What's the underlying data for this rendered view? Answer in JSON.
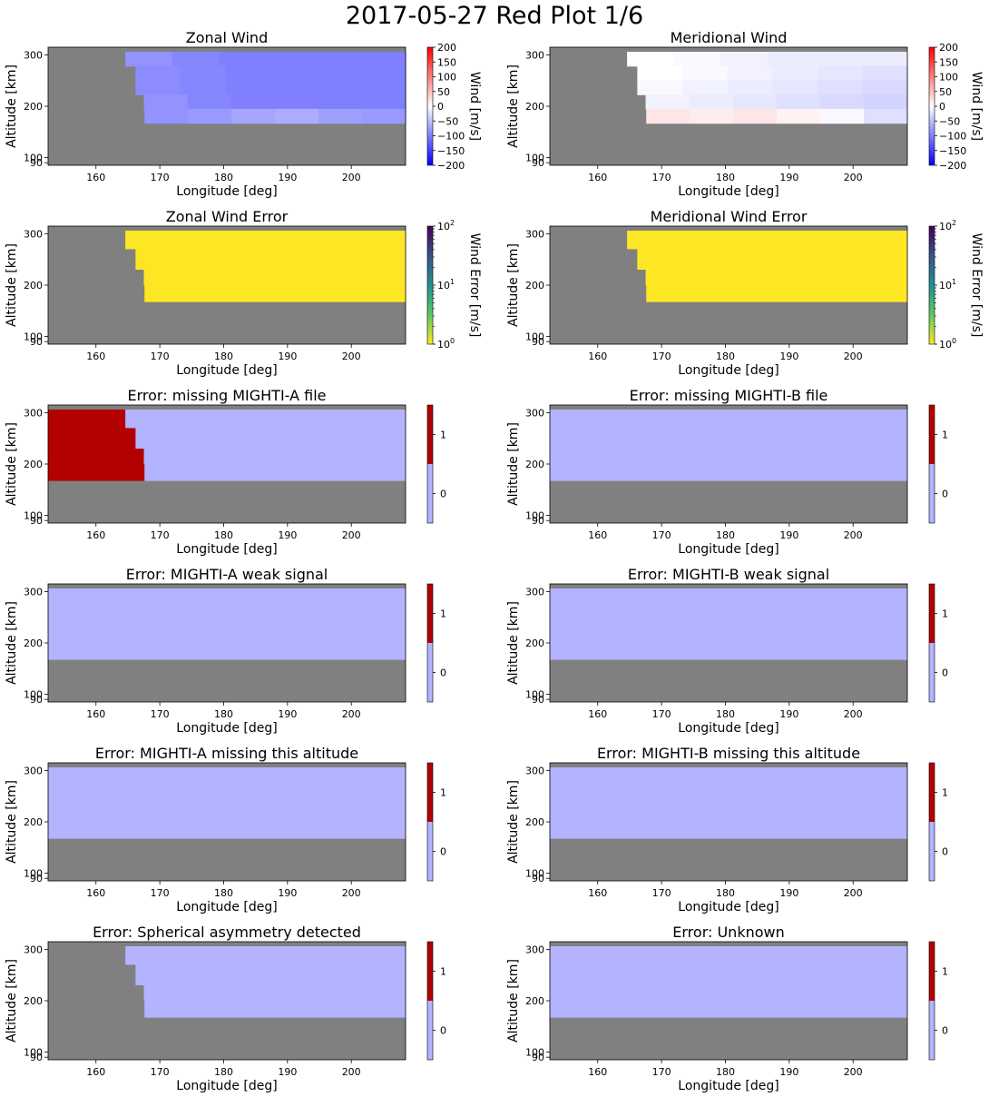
{
  "suptitle": "2017-05-27 Red Plot 1/6",
  "colors": {
    "nodata": "#808080",
    "flag_low": "#b3b3ff",
    "flag_high": "#b30000",
    "error_fill": "#fde725"
  },
  "chart_data": [
    {
      "type": "heatmap",
      "title": "Zonal Wind",
      "xlabel": "Longitude [deg]",
      "ylabel": "Altitude [km]",
      "xlim": [
        152.5,
        208.5
      ],
      "ylim": [
        85,
        315
      ],
      "xticks": [
        160,
        170,
        180,
        190,
        200
      ],
      "yticks": [
        90,
        100,
        200,
        300
      ],
      "colorbar": {
        "label": "Wind [m/s]",
        "scale": "diverging",
        "range": [
          -200,
          200
        ],
        "ticks": [
          200,
          150,
          100,
          50,
          0,
          -50,
          -100,
          -150,
          -200
        ]
      },
      "data_region": {
        "top_row_km": 300,
        "bottom_km": 167,
        "edge": [
          {
            "alt": 300,
            "lon": 164.6
          },
          {
            "alt": 270,
            "lon": 166.2
          },
          {
            "alt": 230,
            "lon": 167.5
          },
          {
            "alt": 200,
            "lon": 167.6
          }
        ]
      },
      "rows": [
        {
          "alt": 300,
          "values": [
            -85,
            -95,
            -100,
            -100,
            -100,
            -100
          ]
        },
        {
          "alt": 270,
          "values": [
            -90,
            -95,
            -100,
            -100,
            -100,
            -100
          ]
        },
        {
          "alt": 240,
          "values": [
            -90,
            -95,
            -100,
            -100,
            -100,
            -100
          ]
        },
        {
          "alt": 210,
          "values": [
            -85,
            -95,
            -100,
            -100,
            -100,
            -100
          ]
        },
        {
          "alt": 180,
          "values": [
            -85,
            -80,
            -70,
            -65,
            -75,
            -80
          ]
        }
      ]
    },
    {
      "type": "heatmap",
      "title": "Meridional Wind",
      "xlabel": "Longitude [deg]",
      "ylabel": "Altitude [km]",
      "xlim": [
        152.5,
        208.5
      ],
      "ylim": [
        85,
        315
      ],
      "xticks": [
        160,
        170,
        180,
        190,
        200
      ],
      "yticks": [
        90,
        100,
        200,
        300
      ],
      "colorbar": {
        "label": "Wind [m/s]",
        "scale": "diverging",
        "range": [
          -200,
          200
        ],
        "ticks": [
          200,
          150,
          100,
          50,
          0,
          -50,
          -100,
          -150,
          -200
        ]
      },
      "data_region": {
        "top_row_km": 300,
        "bottom_km": 167,
        "edge": [
          {
            "alt": 300,
            "lon": 164.6
          },
          {
            "alt": 270,
            "lon": 166.2
          },
          {
            "alt": 230,
            "lon": 167.5
          },
          {
            "alt": 200,
            "lon": 167.6
          }
        ]
      },
      "rows": [
        {
          "alt": 300,
          "values": [
            0,
            -5,
            -10,
            -15,
            -15,
            -15
          ]
        },
        {
          "alt": 270,
          "values": [
            0,
            -5,
            -10,
            -15,
            -20,
            -25
          ]
        },
        {
          "alt": 240,
          "values": [
            -5,
            -10,
            -15,
            -20,
            -25,
            -30
          ]
        },
        {
          "alt": 210,
          "values": [
            -10,
            -15,
            -20,
            -25,
            -30,
            -35
          ]
        },
        {
          "alt": 180,
          "values": [
            20,
            15,
            20,
            10,
            -5,
            -25
          ]
        }
      ]
    },
    {
      "type": "heatmap",
      "title": "Zonal Wind Error",
      "xlabel": "Longitude [deg]",
      "ylabel": "Altitude [km]",
      "xlim": [
        152.5,
        208.5
      ],
      "ylim": [
        85,
        315
      ],
      "xticks": [
        160,
        170,
        180,
        190,
        200
      ],
      "yticks": [
        90,
        100,
        200,
        300
      ],
      "colorbar": {
        "label": "Wind Error [m/s]",
        "scale": "log",
        "range": [
          1,
          100
        ],
        "ticks": [
          "10",
          "10",
          "10"
        ],
        "tick_exponents": [
          "2",
          "1",
          "0"
        ]
      },
      "data_region": {
        "top_row_km": 300,
        "bottom_km": 167,
        "edge": [
          {
            "alt": 300,
            "lon": 164.6
          },
          {
            "alt": 270,
            "lon": 166.2
          },
          {
            "alt": 230,
            "lon": 167.5
          },
          {
            "alt": 200,
            "lon": 167.6
          }
        ]
      },
      "fill_value": 1
    },
    {
      "type": "heatmap",
      "title": "Meridional Wind Error",
      "xlabel": "Longitude [deg]",
      "ylabel": "Altitude [km]",
      "xlim": [
        152.5,
        208.5
      ],
      "ylim": [
        85,
        315
      ],
      "xticks": [
        160,
        170,
        180,
        190,
        200
      ],
      "yticks": [
        90,
        100,
        200,
        300
      ],
      "colorbar": {
        "label": "Wind Error [m/s]",
        "scale": "log",
        "range": [
          1,
          100
        ],
        "ticks": [
          "10",
          "10",
          "10"
        ],
        "tick_exponents": [
          "2",
          "1",
          "0"
        ]
      },
      "data_region": {
        "top_row_km": 300,
        "bottom_km": 167,
        "edge": [
          {
            "alt": 300,
            "lon": 164.6
          },
          {
            "alt": 270,
            "lon": 166.2
          },
          {
            "alt": 230,
            "lon": 167.5
          },
          {
            "alt": 200,
            "lon": 167.6
          }
        ]
      },
      "fill_value": 1
    },
    {
      "type": "heatmap",
      "title": "Error: missing MIGHTI-A file",
      "xlabel": "Longitude [deg]",
      "ylabel": "Altitude [km]",
      "xlim": [
        152.5,
        208.5
      ],
      "ylim": [
        85,
        315
      ],
      "xticks": [
        160,
        170,
        180,
        190,
        200
      ],
      "yticks": [
        90,
        100,
        200,
        300
      ],
      "colorbar": {
        "scale": "flag",
        "ticks": [
          "1",
          "0"
        ]
      },
      "data_region": {
        "top_row_km": 300,
        "bottom_km": 167,
        "edge": []
      },
      "flag_1_region": {
        "edge": [
          {
            "alt": 300,
            "lon": 164.6
          },
          {
            "alt": 270,
            "lon": 166.2
          },
          {
            "alt": 230,
            "lon": 167.5
          },
          {
            "alt": 200,
            "lon": 167.6
          }
        ]
      }
    },
    {
      "type": "heatmap",
      "title": "Error: missing MIGHTI-B file",
      "xlabel": "Longitude [deg]",
      "ylabel": "Altitude [km]",
      "xlim": [
        152.5,
        208.5
      ],
      "ylim": [
        85,
        315
      ],
      "xticks": [
        160,
        170,
        180,
        190,
        200
      ],
      "yticks": [
        90,
        100,
        200,
        300
      ],
      "colorbar": {
        "scale": "flag",
        "ticks": [
          "1",
          "0"
        ]
      },
      "data_region": {
        "top_row_km": 300,
        "bottom_km": 167,
        "edge": []
      }
    },
    {
      "type": "heatmap",
      "title": "Error: MIGHTI-A weak signal",
      "xlabel": "Longitude [deg]",
      "ylabel": "Altitude [km]",
      "xlim": [
        152.5,
        208.5
      ],
      "ylim": [
        85,
        315
      ],
      "xticks": [
        160,
        170,
        180,
        190,
        200
      ],
      "yticks": [
        90,
        100,
        200,
        300
      ],
      "colorbar": {
        "scale": "flag",
        "ticks": [
          "1",
          "0"
        ]
      },
      "data_region": {
        "top_row_km": 300,
        "bottom_km": 167,
        "edge": []
      }
    },
    {
      "type": "heatmap",
      "title": "Error: MIGHTI-B weak signal",
      "xlabel": "Longitude [deg]",
      "ylabel": "Altitude [km]",
      "xlim": [
        152.5,
        208.5
      ],
      "ylim": [
        85,
        315
      ],
      "xticks": [
        160,
        170,
        180,
        190,
        200
      ],
      "yticks": [
        90,
        100,
        200,
        300
      ],
      "colorbar": {
        "scale": "flag",
        "ticks": [
          "1",
          "0"
        ]
      },
      "data_region": {
        "top_row_km": 300,
        "bottom_km": 167,
        "edge": []
      }
    },
    {
      "type": "heatmap",
      "title": "Error: MIGHTI-A missing this altitude",
      "xlabel": "Longitude [deg]",
      "ylabel": "Altitude [km]",
      "xlim": [
        152.5,
        208.5
      ],
      "ylim": [
        85,
        315
      ],
      "xticks": [
        160,
        170,
        180,
        190,
        200
      ],
      "yticks": [
        90,
        100,
        200,
        300
      ],
      "colorbar": {
        "scale": "flag",
        "ticks": [
          "1",
          "0"
        ]
      },
      "data_region": {
        "top_row_km": 300,
        "bottom_km": 167,
        "edge": []
      }
    },
    {
      "type": "heatmap",
      "title": "Error: MIGHTI-B missing this altitude",
      "xlabel": "Longitude [deg]",
      "ylabel": "Altitude [km]",
      "xlim": [
        152.5,
        208.5
      ],
      "ylim": [
        85,
        315
      ],
      "xticks": [
        160,
        170,
        180,
        190,
        200
      ],
      "yticks": [
        90,
        100,
        200,
        300
      ],
      "colorbar": {
        "scale": "flag",
        "ticks": [
          "1",
          "0"
        ]
      },
      "data_region": {
        "top_row_km": 300,
        "bottom_km": 167,
        "edge": []
      }
    },
    {
      "type": "heatmap",
      "title": "Error: Spherical asymmetry detected",
      "xlabel": "Longitude [deg]",
      "ylabel": "Altitude [km]",
      "xlim": [
        152.5,
        208.5
      ],
      "ylim": [
        85,
        315
      ],
      "xticks": [
        160,
        170,
        180,
        190,
        200
      ],
      "yticks": [
        90,
        100,
        200,
        300
      ],
      "colorbar": {
        "scale": "flag",
        "ticks": [
          "1",
          "0"
        ]
      },
      "data_region": {
        "top_row_km": 300,
        "bottom_km": 167,
        "edge": [
          {
            "alt": 300,
            "lon": 164.6
          },
          {
            "alt": 270,
            "lon": 166.2
          },
          {
            "alt": 230,
            "lon": 167.5
          },
          {
            "alt": 200,
            "lon": 167.6
          }
        ]
      }
    },
    {
      "type": "heatmap",
      "title": "Error: Unknown",
      "xlabel": "Longitude [deg]",
      "ylabel": "Altitude [km]",
      "xlim": [
        152.5,
        208.5
      ],
      "ylim": [
        85,
        315
      ],
      "xticks": [
        160,
        170,
        180,
        190,
        200
      ],
      "yticks": [
        90,
        100,
        200,
        300
      ],
      "colorbar": {
        "scale": "flag",
        "ticks": [
          "1",
          "0"
        ]
      },
      "data_region": {
        "top_row_km": 300,
        "bottom_km": 167,
        "edge": []
      }
    }
  ]
}
